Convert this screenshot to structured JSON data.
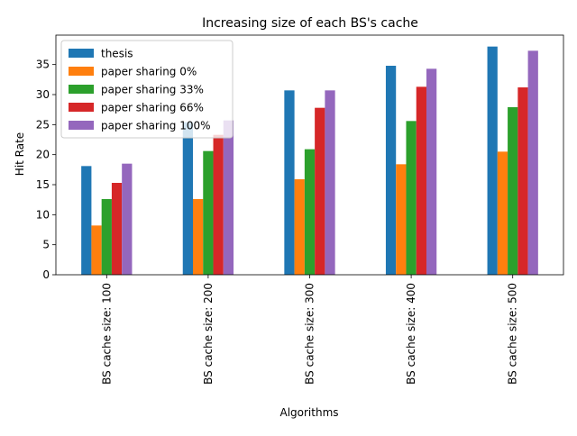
{
  "chart_data": {
    "type": "bar",
    "title": "Increasing size of each BS's cache",
    "xlabel": "Algorithms",
    "ylabel": "Hit Rate",
    "ylim": [
      0,
      39.9
    ],
    "yticks": [
      0,
      5,
      10,
      15,
      20,
      25,
      30,
      35
    ],
    "grid": false,
    "legend_position": "top-left",
    "categories": [
      "BS cache size: 100",
      "BS cache size: 200",
      "BS cache size: 300",
      "BS cache size: 400",
      "BS cache size: 500"
    ],
    "series": [
      {
        "name": "thesis",
        "color": "#1f77b4",
        "values": [
          18.1,
          25.4,
          30.7,
          34.8,
          38.0
        ]
      },
      {
        "name": "paper sharing 0%",
        "color": "#ff7f0e",
        "values": [
          8.2,
          12.6,
          15.9,
          18.4,
          20.5
        ]
      },
      {
        "name": "paper sharing 33%",
        "color": "#2ca02c",
        "values": [
          12.6,
          20.6,
          20.9,
          25.6,
          27.9
        ]
      },
      {
        "name": "paper sharing 66%",
        "color": "#d62728",
        "values": [
          15.3,
          23.3,
          27.8,
          31.3,
          31.2
        ]
      },
      {
        "name": "paper sharing 100%",
        "color": "#9467bd",
        "values": [
          18.5,
          25.7,
          30.7,
          34.3,
          37.3
        ]
      }
    ]
  }
}
